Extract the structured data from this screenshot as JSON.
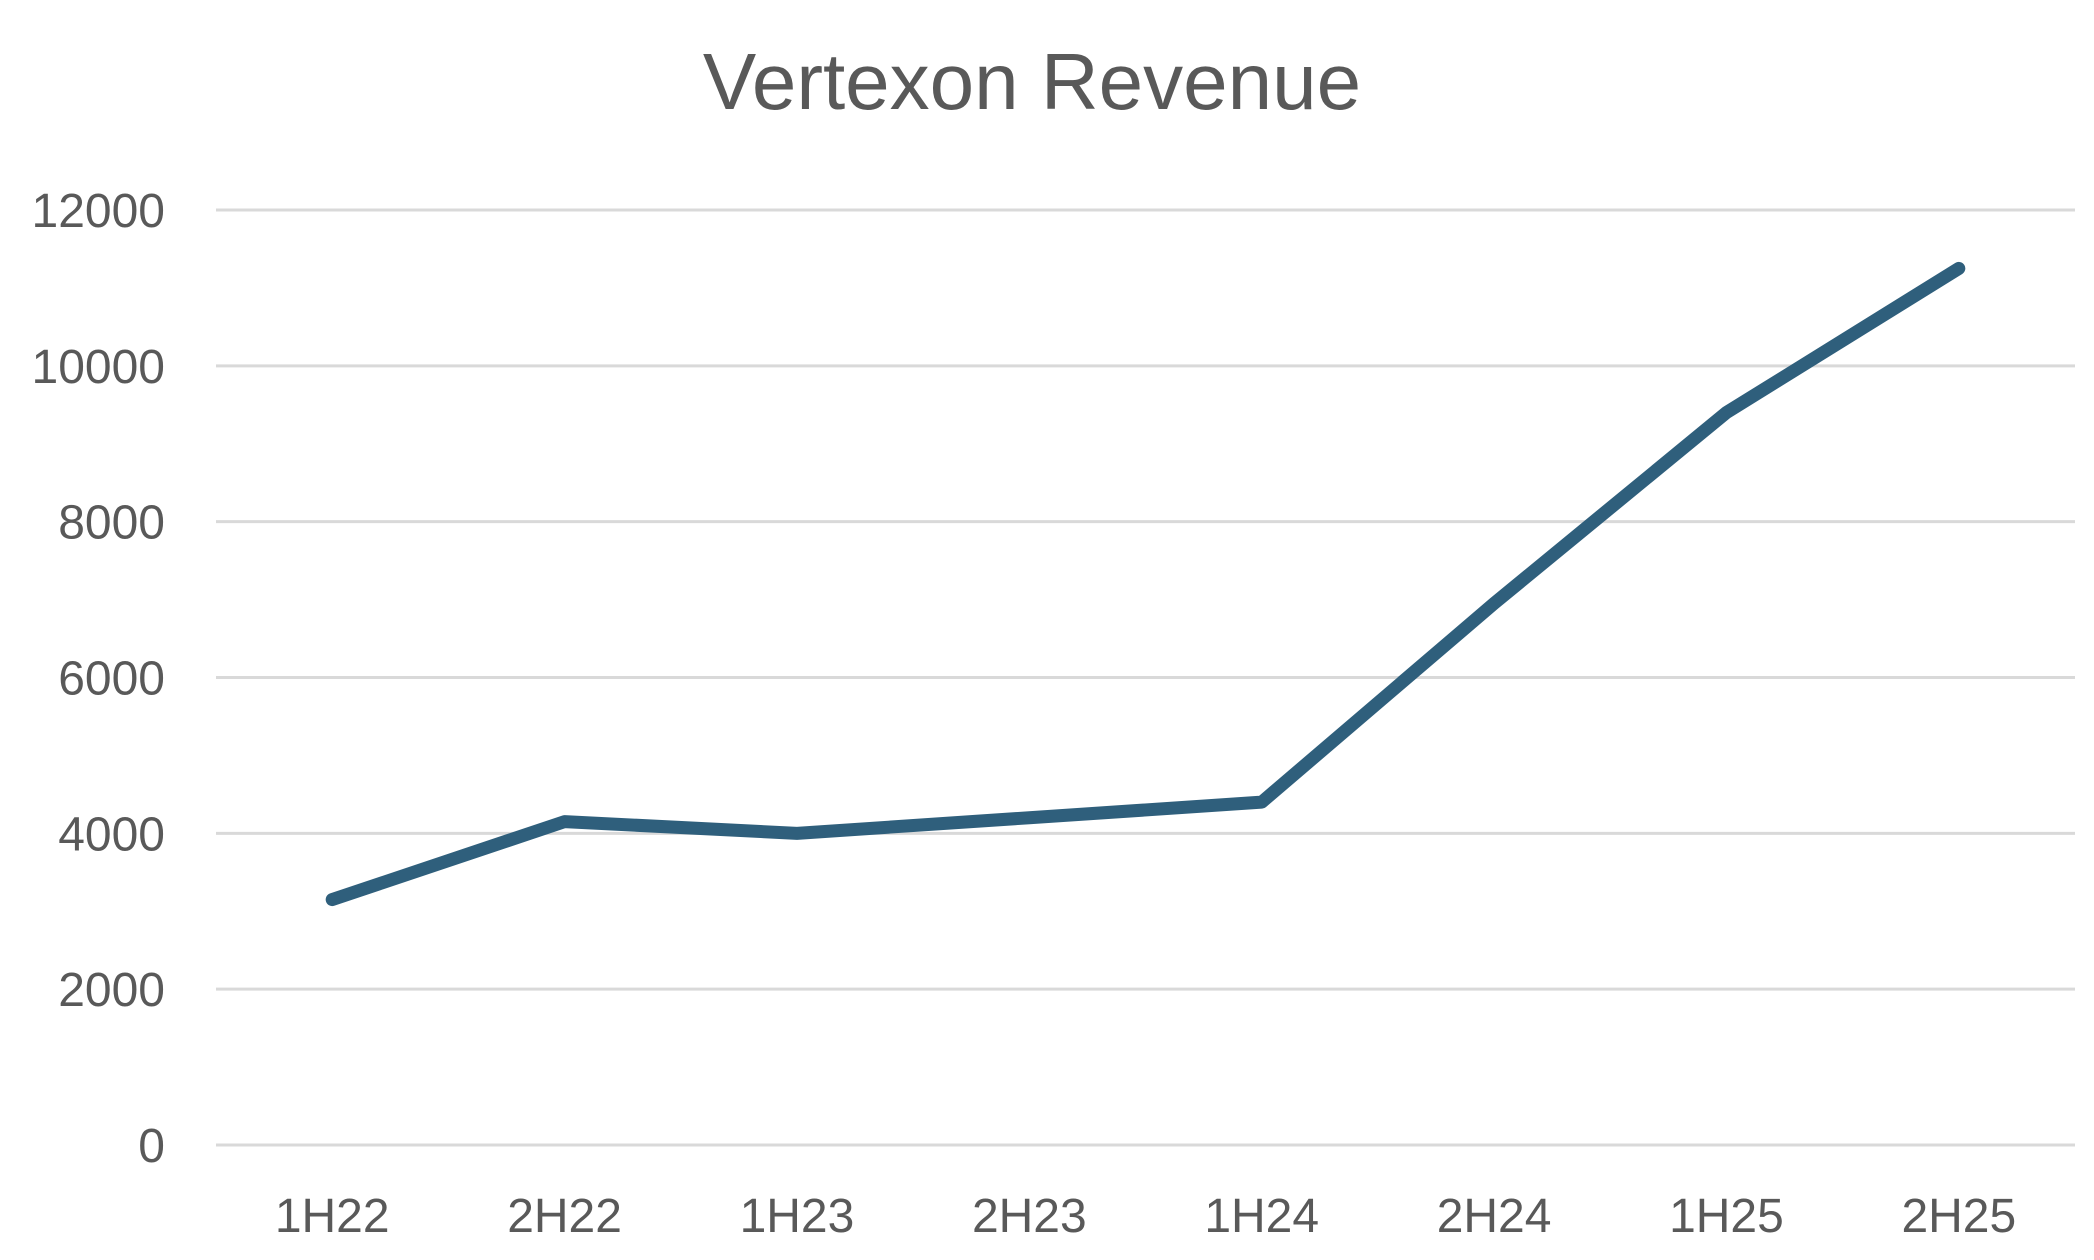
{
  "chart": {
    "title": "Vertexon Revenue"
  },
  "chart_data": {
    "type": "line",
    "title": "Vertexon Revenue",
    "categories": [
      "1H22",
      "2H22",
      "1H23",
      "2H23",
      "1H24",
      "2H24",
      "1H25",
      "2H25"
    ],
    "series": [
      {
        "name": "Vertexon Revenue",
        "values": [
          3150,
          4150,
          4000,
          4200,
          4400,
          6950,
          9400,
          11250
        ]
      }
    ],
    "xlabel": "",
    "ylabel": "",
    "ylim": [
      0,
      12000
    ],
    "yticks": [
      0,
      2000,
      4000,
      6000,
      8000,
      10000,
      12000
    ],
    "grid": "horizontal-only",
    "legend": "none",
    "colors": {
      "line": "#2F5F7C",
      "gridline": "#D9D9D9",
      "tick_text": "#595959",
      "title_text": "#595959",
      "background": "#FFFFFF"
    }
  }
}
